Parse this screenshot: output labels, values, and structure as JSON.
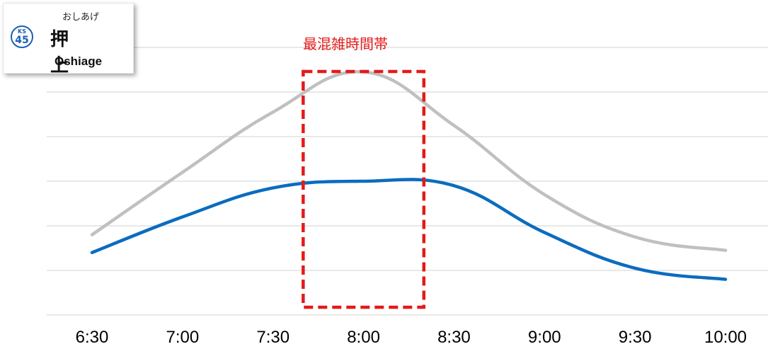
{
  "station": {
    "line_code": "KS",
    "number": "45",
    "kana": "おしあげ",
    "kanji": "押　上",
    "romaji": "Oshiage"
  },
  "colors": {
    "series_gray": "#c0c0c0",
    "series_blue": "#0b6cbf",
    "highlight": "#e41a1a",
    "grid": "#d9d9d9",
    "badge": "#1a5fb4"
  },
  "chart_data": {
    "type": "line",
    "x": [
      "6:30",
      "7:00",
      "7:30",
      "8:00",
      "8:30",
      "9:00",
      "9:30",
      "10:00"
    ],
    "y_gridlines": 6,
    "ylim": [
      0,
      6
    ],
    "grid": true,
    "legend": "none",
    "series": [
      {
        "color": "gray",
        "values": [
          1.8,
          3.2,
          4.55,
          5.45,
          4.25,
          2.7,
          1.75,
          1.45
        ]
      },
      {
        "color": "blue",
        "values": [
          1.4,
          2.2,
          2.85,
          3.0,
          2.9,
          1.85,
          1.05,
          0.8
        ]
      }
    ],
    "annotations": [
      {
        "type": "highlight-box",
        "label": "最混雑時間帯",
        "x_range": [
          "7:40",
          "8:20"
        ]
      }
    ]
  }
}
